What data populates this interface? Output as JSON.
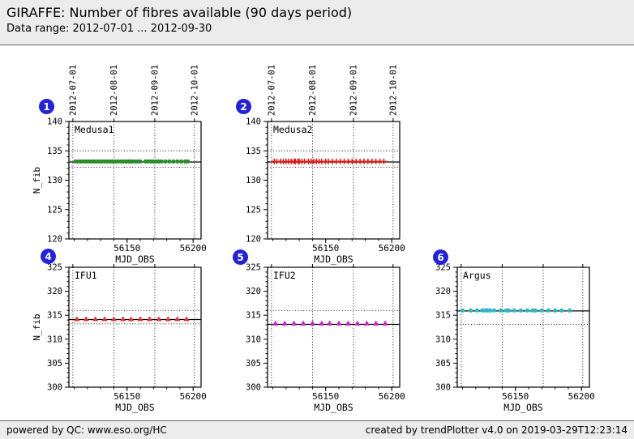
{
  "header": {
    "title": "GIRAFFE: Number of fibres available (90 days period)",
    "subtitle": "Data range: 2012-07-01 ... 2012-09-30"
  },
  "footer": {
    "left": "powered by QC: www.eso.org/HC",
    "right": "created by trendPlotter v4.0 on 2019-03-29T12:23:14"
  },
  "colors": {
    "badge_blue": "#2222dd",
    "medusa1_green": "#2a8b2a",
    "medusa2_red": "#ee1111",
    "ifu1_red": "#e03535",
    "ifu2_magenta": "#cc22cc",
    "argus_teal": "#29b8c4",
    "header_bg": "#ececec",
    "line_black": "#000000"
  },
  "months": [
    {
      "mjd": 56109,
      "label": "2012-07-01"
    },
    {
      "mjd": 56140,
      "label": "2012-08-01"
    },
    {
      "mjd": 56171,
      "label": "2012-09-01"
    },
    {
      "mjd": 56201,
      "label": "2012-10-01"
    }
  ],
  "axis": {
    "xlabel": "MJD_OBS",
    "ylabel": "N_fib",
    "xlim": [
      56106,
      56206
    ],
    "xticks": [
      56150,
      56200
    ],
    "x_minor_step": 10,
    "y_major_step": 5,
    "y_minor_step": 1
  },
  "chart_data": [
    {
      "badge": "1",
      "label": "Medusa1",
      "type": "scatter",
      "marker": "circle",
      "color": "#2a8b2a",
      "show_top_dates": true,
      "show_ylabel": true,
      "ylim": [
        120,
        140
      ],
      "yticks": [
        120,
        125,
        130,
        135,
        140
      ],
      "y_value": 133.2,
      "median_line": 133.1,
      "thresholds": [
        135.0,
        132.2
      ],
      "x": [
        56111,
        56113,
        56115,
        56117,
        56119,
        56121,
        56123,
        56125,
        56127,
        56129,
        56131,
        56133,
        56135,
        56137,
        56139,
        56141,
        56143,
        56145,
        56147,
        56149,
        56151,
        56152,
        56153,
        56154,
        56156,
        56158,
        56160,
        56164,
        56166,
        56168,
        56170,
        56172,
        56174,
        56176,
        56179,
        56182,
        56185,
        56188,
        56191,
        56194,
        56196
      ]
    },
    {
      "badge": "2",
      "label": "Medusa2",
      "type": "scatter",
      "marker": "plus",
      "color": "#ee1111",
      "show_top_dates": true,
      "show_ylabel": false,
      "ylim": [
        120,
        140
      ],
      "yticks": [
        120,
        125,
        130,
        135,
        140
      ],
      "y_value": 133.2,
      "median_line": 133.1,
      "thresholds": [
        135.0,
        132.2
      ],
      "x": [
        56111,
        56113,
        56116,
        56118,
        56120,
        56122,
        56124,
        56126,
        56127,
        56129,
        56130,
        56132,
        56134,
        56137,
        56139,
        56141,
        56143,
        56145,
        56147,
        56150,
        56152,
        56155,
        56158,
        56161,
        56164,
        56167,
        56170,
        56173,
        56176,
        56179,
        56182,
        56185,
        56188,
        56191,
        56194
      ]
    },
    {
      "badge": "4",
      "label": "IFU1",
      "type": "scatter",
      "marker": "triangle",
      "color": "#e03535",
      "show_top_dates": false,
      "show_ylabel": true,
      "ylim": [
        300,
        325
      ],
      "yticks": [
        300,
        305,
        310,
        315,
        320,
        325
      ],
      "y_value": 314.2,
      "median_line": 314.1,
      "thresholds": [
        316.0,
        313.2
      ],
      "x": [
        56112,
        56119,
        56126,
        56133,
        56140,
        56147,
        56153,
        56160,
        56167,
        56174,
        56181,
        56188,
        56195
      ]
    },
    {
      "badge": "5",
      "label": "IFU2",
      "type": "scatter",
      "marker": "triangle",
      "color": "#cc22cc",
      "show_top_dates": false,
      "show_ylabel": false,
      "ylim": [
        300,
        325
      ],
      "yticks": [
        300,
        305,
        310,
        315,
        320,
        325
      ],
      "y_value": 313.3,
      "median_line": 313.1,
      "thresholds": [
        316.0
      ],
      "x": [
        56112,
        56119,
        56126,
        56133,
        56140,
        56147,
        56153,
        56160,
        56167,
        56174,
        56181,
        56188,
        56195
      ]
    },
    {
      "badge": "6",
      "label": "Argus",
      "type": "scatter",
      "marker": "circle",
      "color": "#29b8c4",
      "show_top_dates": false,
      "show_ylabel": false,
      "ylim": [
        300,
        325
      ],
      "yticks": [
        300,
        305,
        310,
        315,
        320,
        325
      ],
      "y_value": 316.0,
      "median_line": 315.9,
      "thresholds": [
        313.1
      ],
      "x": [
        56110,
        56116,
        56121,
        56125,
        56127,
        56129,
        56131,
        56134,
        56139,
        56143,
        56145,
        56149,
        56154,
        56159,
        56163,
        56165,
        56170,
        56175,
        56180,
        56185,
        56191
      ]
    }
  ]
}
